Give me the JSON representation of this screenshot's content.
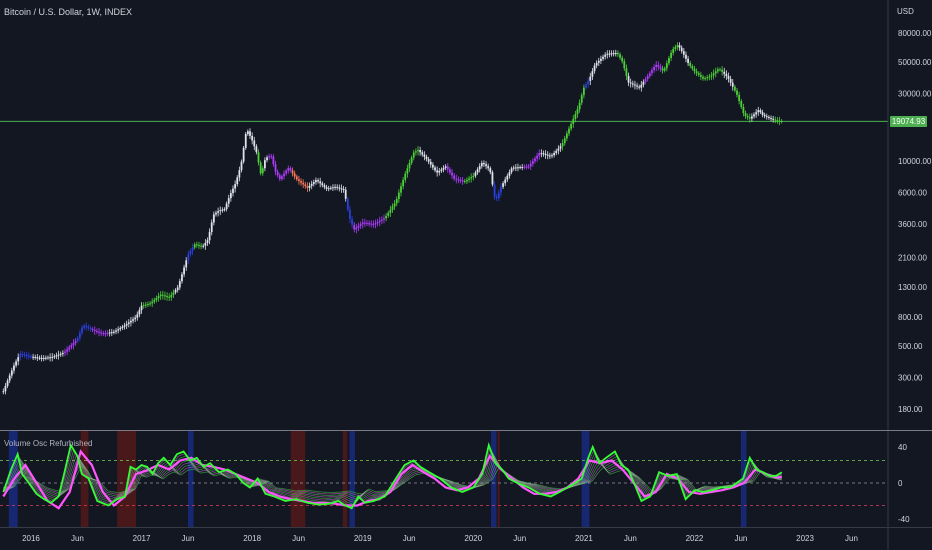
{
  "header": {
    "title": "Bitcoin / U.S. Dollar, 1W, INDEX"
  },
  "price_axis": {
    "unit": "USD",
    "current_price_label": "19074.93",
    "current_price": 19074.93
  },
  "indicator": {
    "name": "Volume Osc Refurbished"
  },
  "colors": {
    "background": "#131722",
    "price_line": "#4caf50",
    "candle_white": "#e0e3eb",
    "candle_green": "#4cd137",
    "candle_magenta": "#b03aff",
    "candle_blue": "#2a3fe0",
    "candle_orange": "#ff7b5c",
    "osc_green": "#33ff33",
    "osc_magenta": "#ff55ff",
    "band_blue": "#1a2e8c",
    "band_red": "#5c1a1a",
    "level_green": "#7ad05a",
    "level_red": "#e0405a"
  },
  "chart_data": [
    {
      "type": "candlestick",
      "scale": "log",
      "y_ticks": [
        "80000.00",
        "50000.00",
        "30000.00",
        "10000.00",
        "6000.00",
        "3600.00",
        "2100.00",
        "1300.00",
        "800.00",
        "500.00",
        "300.00",
        "180.00"
      ],
      "y_tick_values": [
        80000,
        50000,
        30000,
        10000,
        6000,
        3600,
        2100,
        1300,
        800,
        500,
        300,
        180
      ],
      "x_ticks": [
        "2016",
        "Jun",
        "2017",
        "Jun",
        "2018",
        "Jun",
        "2019",
        "Jun",
        "2020",
        "Jun",
        "2021",
        "Jun",
        "2022",
        "Jun",
        "2023",
        "Jun"
      ],
      "x_tick_dates": [
        2016.0,
        2016.42,
        2017.0,
        2017.42,
        2018.0,
        2018.42,
        2019.0,
        2019.42,
        2020.0,
        2020.42,
        2021.0,
        2021.42,
        2022.0,
        2022.42,
        2023.0,
        2023.42
      ],
      "horizontal_line": 19074.93,
      "price_path": [
        [
          2015.75,
          240
        ],
        [
          2015.8,
          300
        ],
        [
          2015.85,
          370
        ],
        [
          2015.9,
          440
        ],
        [
          2016.0,
          420
        ],
        [
          2016.1,
          410
        ],
        [
          2016.2,
          420
        ],
        [
          2016.3,
          450
        ],
        [
          2016.42,
          560
        ],
        [
          2016.47,
          700
        ],
        [
          2016.55,
          650
        ],
        [
          2016.65,
          610
        ],
        [
          2016.75,
          630
        ],
        [
          2016.85,
          700
        ],
        [
          2016.95,
          800
        ],
        [
          2017.0,
          960
        ],
        [
          2017.08,
          1000
        ],
        [
          2017.17,
          1150
        ],
        [
          2017.25,
          1100
        ],
        [
          2017.33,
          1300
        ],
        [
          2017.42,
          2200
        ],
        [
          2017.48,
          2600
        ],
        [
          2017.55,
          2500
        ],
        [
          2017.6,
          2800
        ],
        [
          2017.65,
          4200
        ],
        [
          2017.7,
          4500
        ],
        [
          2017.75,
          4600
        ],
        [
          2017.8,
          5800
        ],
        [
          2017.85,
          7000
        ],
        [
          2017.9,
          9500
        ],
        [
          2017.95,
          17000
        ],
        [
          2018.0,
          14000
        ],
        [
          2018.04,
          11500
        ],
        [
          2018.08,
          8000
        ],
        [
          2018.12,
          10500
        ],
        [
          2018.17,
          11000
        ],
        [
          2018.21,
          8500
        ],
        [
          2018.25,
          7500
        ],
        [
          2018.33,
          9000
        ],
        [
          2018.4,
          7500
        ],
        [
          2018.5,
          6500
        ],
        [
          2018.58,
          7400
        ],
        [
          2018.67,
          6400
        ],
        [
          2018.75,
          6600
        ],
        [
          2018.83,
          6300
        ],
        [
          2018.88,
          4000
        ],
        [
          2018.92,
          3300
        ],
        [
          2019.0,
          3700
        ],
        [
          2019.1,
          3600
        ],
        [
          2019.2,
          4000
        ],
        [
          2019.3,
          5200
        ],
        [
          2019.38,
          8000
        ],
        [
          2019.46,
          11500
        ],
        [
          2019.5,
          12000
        ],
        [
          2019.58,
          10300
        ],
        [
          2019.67,
          8300
        ],
        [
          2019.75,
          9200
        ],
        [
          2019.83,
          7500
        ],
        [
          2019.92,
          7200
        ],
        [
          2020.0,
          7900
        ],
        [
          2020.08,
          9800
        ],
        [
          2020.15,
          8700
        ],
        [
          2020.2,
          5200
        ],
        [
          2020.25,
          6600
        ],
        [
          2020.35,
          9000
        ],
        [
          2020.5,
          9200
        ],
        [
          2020.6,
          11500
        ],
        [
          2020.7,
          10800
        ],
        [
          2020.8,
          13000
        ],
        [
          2020.88,
          18000
        ],
        [
          2020.95,
          24000
        ],
        [
          2021.0,
          33000
        ],
        [
          2021.05,
          38000
        ],
        [
          2021.1,
          48000
        ],
        [
          2021.2,
          57000
        ],
        [
          2021.3,
          58000
        ],
        [
          2021.35,
          50000
        ],
        [
          2021.4,
          36000
        ],
        [
          2021.5,
          33000
        ],
        [
          2021.58,
          40000
        ],
        [
          2021.65,
          48000
        ],
        [
          2021.72,
          43000
        ],
        [
          2021.8,
          61000
        ],
        [
          2021.85,
          66000
        ],
        [
          2021.9,
          57000
        ],
        [
          2021.95,
          48000
        ],
        [
          2022.0,
          43000
        ],
        [
          2022.08,
          38000
        ],
        [
          2022.15,
          40000
        ],
        [
          2022.22,
          45000
        ],
        [
          2022.3,
          39000
        ],
        [
          2022.38,
          30000
        ],
        [
          2022.45,
          21000
        ],
        [
          2022.5,
          20000
        ],
        [
          2022.58,
          23000
        ],
        [
          2022.62,
          21000
        ],
        [
          2022.7,
          19800
        ],
        [
          2022.75,
          19300
        ],
        [
          2022.79,
          19074.93
        ]
      ],
      "regime_colors": [
        [
          2015.75,
          "white"
        ],
        [
          2015.9,
          "blue"
        ],
        [
          2016.0,
          "white"
        ],
        [
          2016.3,
          "magenta"
        ],
        [
          2016.42,
          "blue"
        ],
        [
          2016.55,
          "magenta"
        ],
        [
          2016.7,
          "white"
        ],
        [
          2017.0,
          "green"
        ],
        [
          2017.3,
          "white"
        ],
        [
          2017.42,
          "blue"
        ],
        [
          2017.48,
          "green"
        ],
        [
          2017.55,
          "white"
        ],
        [
          2018.05,
          "green"
        ],
        [
          2018.1,
          "white"
        ],
        [
          2018.15,
          "magenta"
        ],
        [
          2018.35,
          "orange"
        ],
        [
          2018.5,
          "white"
        ],
        [
          2018.85,
          "blue"
        ],
        [
          2018.92,
          "magenta"
        ],
        [
          2019.2,
          "green"
        ],
        [
          2019.5,
          "white"
        ],
        [
          2019.75,
          "magenta"
        ],
        [
          2019.92,
          "green"
        ],
        [
          2020.0,
          "white"
        ],
        [
          2020.18,
          "blue"
        ],
        [
          2020.25,
          "white"
        ],
        [
          2020.45,
          "magenta"
        ],
        [
          2020.6,
          "white"
        ],
        [
          2020.8,
          "green"
        ],
        [
          2021.0,
          "blue"
        ],
        [
          2021.05,
          "white"
        ],
        [
          2021.3,
          "green"
        ],
        [
          2021.4,
          "white"
        ],
        [
          2021.55,
          "magenta"
        ],
        [
          2021.7,
          "green"
        ],
        [
          2021.85,
          "white"
        ],
        [
          2021.95,
          "green"
        ],
        [
          2022.25,
          "white"
        ],
        [
          2022.35,
          "green"
        ],
        [
          2022.5,
          "white"
        ],
        [
          2022.72,
          "green"
        ]
      ]
    },
    {
      "type": "line",
      "title": "Volume Osc Refurbished",
      "y_ticks": [
        "40",
        "0",
        "-40"
      ],
      "y_tick_values": [
        40,
        0,
        -40
      ],
      "levels": [
        25,
        0,
        -25
      ],
      "ylim": [
        -45,
        45
      ],
      "series": [
        {
          "color": "green",
          "x": [
            2015.75,
            2015.82,
            2015.88,
            2015.92,
            2015.98,
            2016.05,
            2016.12,
            2016.18,
            2016.25,
            2016.3,
            2016.36,
            2016.42,
            2016.46,
            2016.52,
            2016.6,
            2016.7,
            2016.78,
            2016.85,
            2016.9,
            2016.95,
            2017.0,
            2017.05,
            2017.1,
            2017.15,
            2017.2,
            2017.26,
            2017.32,
            2017.38,
            2017.44,
            2017.5,
            2017.56,
            2017.62,
            2017.7,
            2017.78,
            2017.85,
            2017.92,
            2017.98,
            2018.05,
            2018.12,
            2018.2,
            2018.3,
            2018.4,
            2018.5,
            2018.6,
            2018.7,
            2018.78,
            2018.84,
            2018.9,
            2018.96,
            2019.02,
            2019.1,
            2019.2,
            2019.3,
            2019.38,
            2019.46,
            2019.52,
            2019.6,
            2019.7,
            2019.8,
            2019.9,
            2020.0,
            2020.08,
            2020.14,
            2020.2,
            2020.26,
            2020.32,
            2020.4,
            2020.5,
            2020.6,
            2020.7,
            2020.78,
            2020.85,
            2020.92,
            2020.98,
            2021.04,
            2021.08,
            2021.14,
            2021.2,
            2021.28,
            2021.34,
            2021.4,
            2021.46,
            2021.52,
            2021.6,
            2021.68,
            2021.76,
            2021.84,
            2021.92,
            2022.0,
            2022.08,
            2022.16,
            2022.24,
            2022.32,
            2022.38,
            2022.44,
            2022.5,
            2022.56,
            2022.62,
            2022.68,
            2022.74,
            2022.79
          ],
          "values": [
            -10,
            15,
            32,
            10,
            0,
            -12,
            -18,
            -22,
            -15,
            10,
            42,
            30,
            10,
            5,
            -20,
            -25,
            -18,
            -15,
            18,
            15,
            20,
            18,
            10,
            22,
            28,
            20,
            32,
            35,
            25,
            28,
            18,
            22,
            12,
            15,
            10,
            0,
            -5,
            5,
            -12,
            -15,
            -20,
            -18,
            -22,
            -24,
            -23,
            -20,
            -25,
            -28,
            -15,
            -22,
            -20,
            -15,
            5,
            20,
            25,
            18,
            12,
            5,
            -5,
            -10,
            -5,
            10,
            42,
            22,
            15,
            5,
            0,
            -5,
            -12,
            -15,
            -10,
            -5,
            0,
            5,
            28,
            40,
            22,
            28,
            35,
            20,
            15,
            -2,
            -20,
            -15,
            12,
            8,
            10,
            -18,
            -8,
            -10,
            -8,
            -5,
            -5,
            0,
            5,
            28,
            15,
            12,
            8,
            8,
            12
          ]
        },
        {
          "color": "magenta",
          "x": [
            2015.75,
            2015.85,
            2015.95,
            2016.05,
            2016.15,
            2016.25,
            2016.35,
            2016.45,
            2016.55,
            2016.65,
            2016.75,
            2016.85,
            2016.95,
            2017.05,
            2017.15,
            2017.25,
            2017.35,
            2017.45,
            2017.55,
            2017.65,
            2017.75,
            2017.85,
            2017.95,
            2018.05,
            2018.15,
            2018.25,
            2018.35,
            2018.45,
            2018.55,
            2018.65,
            2018.75,
            2018.85,
            2018.95,
            2019.05,
            2019.15,
            2019.25,
            2019.35,
            2019.45,
            2019.55,
            2019.65,
            2019.75,
            2019.85,
            2019.95,
            2020.05,
            2020.15,
            2020.25,
            2020.35,
            2020.45,
            2020.55,
            2020.65,
            2020.75,
            2020.85,
            2020.95,
            2021.05,
            2021.15,
            2021.25,
            2021.35,
            2021.45,
            2021.55,
            2021.65,
            2021.75,
            2021.85,
            2021.95,
            2022.05,
            2022.15,
            2022.25,
            2022.35,
            2022.45,
            2022.55,
            2022.65,
            2022.75,
            2022.79
          ],
          "values": [
            -15,
            5,
            20,
            0,
            -20,
            -28,
            -10,
            35,
            20,
            -10,
            -25,
            -15,
            10,
            14,
            20,
            15,
            25,
            28,
            20,
            18,
            15,
            10,
            5,
            0,
            -10,
            -15,
            -18,
            -20,
            -22,
            -22,
            -23,
            -25,
            -25,
            -20,
            -18,
            -10,
            10,
            20,
            12,
            5,
            -5,
            -8,
            -5,
            5,
            30,
            15,
            5,
            -5,
            -12,
            -12,
            -10,
            -5,
            5,
            25,
            22,
            25,
            15,
            0,
            -15,
            -10,
            10,
            5,
            -10,
            -12,
            -10,
            -8,
            -5,
            0,
            15,
            10,
            6,
            7
          ]
        }
      ]
    }
  ]
}
